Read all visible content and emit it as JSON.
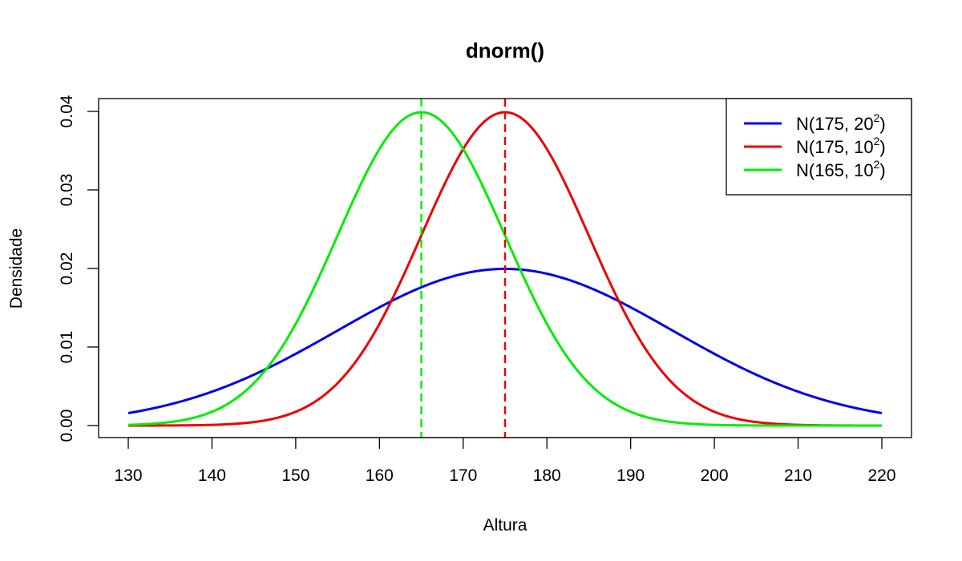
{
  "chart_data": {
    "type": "line",
    "title": "dnorm()",
    "xlabel": "Altura",
    "ylabel": "Densidade",
    "xlim": [
      130,
      220
    ],
    "ylim": [
      0,
      0.04
    ],
    "x_ticks": [
      130,
      140,
      150,
      160,
      170,
      180,
      190,
      200,
      210,
      220
    ],
    "x_tick_labels": [
      "130",
      "140",
      "150",
      "160",
      "170",
      "180",
      "190",
      "200",
      "210",
      "220"
    ],
    "y_ticks": [
      0,
      0.01,
      0.02,
      0.03,
      0.04
    ],
    "y_tick_labels": [
      "0.00",
      "0.01",
      "0.02",
      "0.03",
      "0.04"
    ],
    "grid": false,
    "legend_position": "top-right",
    "series": [
      {
        "name": "N(175, 20²)",
        "label_main": "N(175, 20",
        "label_sup": "2",
        "label_end": ")",
        "mean": 175,
        "sd": 20,
        "color": "#0000ee"
      },
      {
        "name": "N(175, 10²)",
        "label_main": "N(175, 10",
        "label_sup": "2",
        "label_end": ")",
        "mean": 175,
        "sd": 10,
        "color": "#ee0000"
      },
      {
        "name": "N(165, 10²)",
        "label_main": "N(165, 10",
        "label_sup": "2",
        "label_end": ")",
        "mean": 165,
        "sd": 10,
        "color": "#00ee00"
      }
    ],
    "vlines": [
      {
        "x": 165,
        "color": "#00ee00",
        "style": "dashed"
      },
      {
        "x": 175,
        "color": "#ee0000",
        "style": "dashed"
      }
    ]
  }
}
